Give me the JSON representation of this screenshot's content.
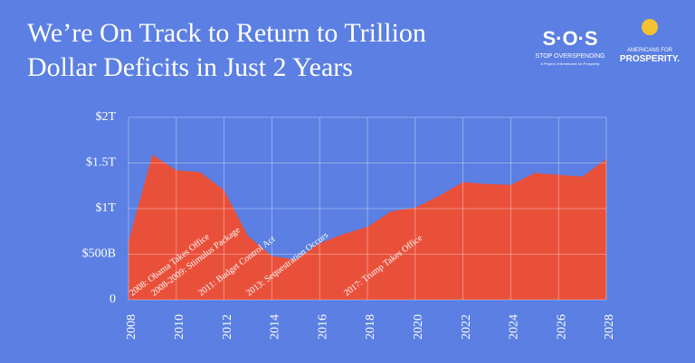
{
  "chart_data": {
    "type": "area",
    "title": [
      "We’re On Track to Return to Trillion",
      "Dollar Deficits in Just 2 Years"
    ],
    "logos": {
      "sos": "S·O·S",
      "sos_tagline": "STOP OVERSPENDING",
      "sos_note": "A Project of Americans for Prosperity",
      "afp_top": "AMERICANS FOR",
      "afp_bottom": "PROSPERITY."
    },
    "x": [
      2008,
      2009,
      2010,
      2011,
      2012,
      2013,
      2014,
      2015,
      2016,
      2017,
      2018,
      2019,
      2020,
      2021,
      2022,
      2023,
      2024,
      2025,
      2026,
      2027,
      2028
    ],
    "values": [
      640,
      1590,
      1420,
      1400,
      1200,
      700,
      480,
      440,
      620,
      720,
      800,
      970,
      1010,
      1140,
      1290,
      1270,
      1260,
      1390,
      1370,
      1350,
      1545
    ],
    "color": "#e9503a",
    "xlim": [
      2008,
      2028
    ],
    "xticks": [
      2008,
      2010,
      2012,
      2014,
      2016,
      2018,
      2020,
      2022,
      2024,
      2026,
      2028
    ],
    "ylim": [
      0,
      2000
    ],
    "yticks": [
      0,
      {
        "value": 500,
        "label": "$500B"
      },
      {
        "value": 1000,
        "label": "$1T"
      },
      {
        "value": 1500,
        "label": "$1.5T"
      },
      {
        "value": 2000,
        "label": "$2T"
      }
    ],
    "grid": true,
    "annotations": [
      "2008: Obama Takes Office",
      "2008-2009: Stimulus Package",
      "2011: Budget Control Act",
      "2013: Sequestration Occurs",
      "2017: Trump Takes Office"
    ]
  }
}
